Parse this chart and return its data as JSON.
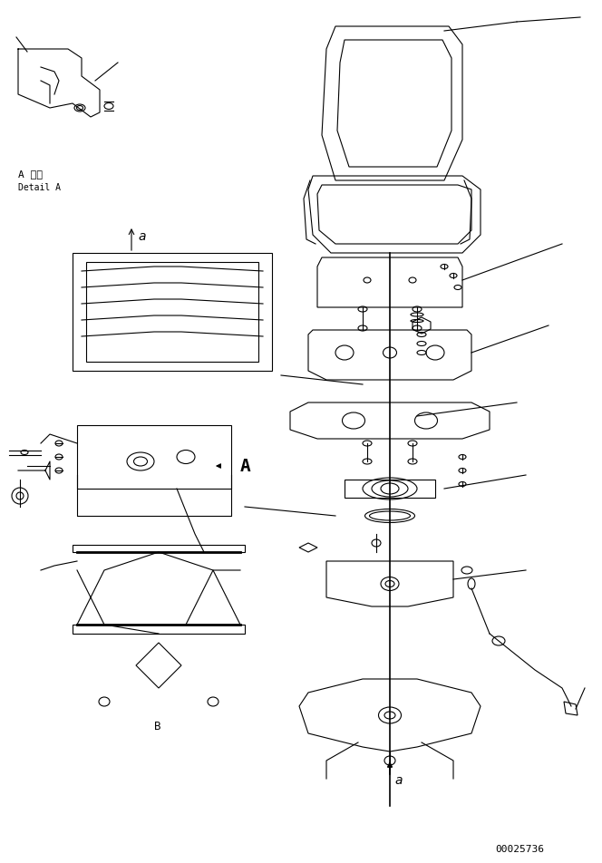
{
  "background_color": "#ffffff",
  "line_color": "#000000",
  "figsize": [
    6.64,
    9.53
  ],
  "dpi": 100,
  "detail_label_japanese": "A 詳細",
  "detail_label_english": "Detail A",
  "label_a_upper": "a",
  "label_A_upper": "A",
  "part_number": "00025736",
  "font_family": "monospace"
}
